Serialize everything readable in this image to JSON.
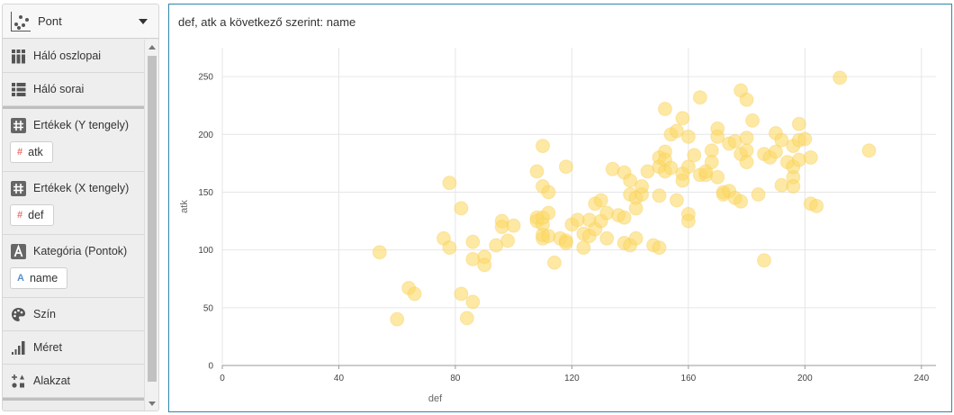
{
  "sidebar": {
    "chart_type": {
      "label": "Pont",
      "icon": "scatter-chart-icon"
    },
    "rows": [
      {
        "key": "grid-columns",
        "label": "Háló oszlopai",
        "icon": "grid-columns-icon"
      },
      {
        "key": "grid-rows",
        "label": "Háló sorai",
        "icon": "grid-rows-icon"
      },
      {
        "key": "values-y",
        "label": "Ertékek (Y tengely)",
        "icon": "hash-icon",
        "field": "atk",
        "field_icon": "#"
      },
      {
        "key": "values-x",
        "label": "Ertékek (X tengely)",
        "icon": "hash-icon",
        "field": "def",
        "field_icon": "#"
      },
      {
        "key": "category",
        "label": "Kategória (Pontok)",
        "icon": "text-a-icon",
        "field": "name",
        "field_icon": "A"
      },
      {
        "key": "color",
        "label": "Szín",
        "icon": "palette-icon"
      },
      {
        "key": "size",
        "label": "Méret",
        "icon": "size-bars-icon"
      },
      {
        "key": "shape",
        "label": "Alakzat",
        "icon": "shapes-icon"
      }
    ]
  },
  "colors": {
    "point": "#fcd968",
    "point_stroke": "#f5c842",
    "frame": "#2e86ab",
    "number_icon": "#e8736c",
    "text_icon": "#5b8fc9"
  },
  "chart_data": {
    "type": "scatter",
    "title": "def, atk a következő szerint: name",
    "xlabel": "def",
    "ylabel": "atk",
    "xlim": [
      0,
      245
    ],
    "ylim": [
      0,
      275
    ],
    "xticks": [
      0,
      40,
      80,
      120,
      160,
      200,
      240
    ],
    "yticks": [
      0,
      50,
      100,
      150,
      200,
      250
    ],
    "grid": true,
    "points": [
      [
        54,
        98
      ],
      [
        60,
        40
      ],
      [
        64,
        67
      ],
      [
        66,
        62
      ],
      [
        76,
        110
      ],
      [
        78,
        158
      ],
      [
        78,
        102
      ],
      [
        82,
        136
      ],
      [
        82,
        62
      ],
      [
        84,
        41
      ],
      [
        86,
        55
      ],
      [
        86,
        107
      ],
      [
        86,
        92
      ],
      [
        90,
        94
      ],
      [
        90,
        87
      ],
      [
        94,
        104
      ],
      [
        96,
        125
      ],
      [
        96,
        120
      ],
      [
        98,
        108
      ],
      [
        100,
        121
      ],
      [
        108,
        128
      ],
      [
        108,
        125
      ],
      [
        108,
        168
      ],
      [
        110,
        190
      ],
      [
        110,
        155
      ],
      [
        110,
        122
      ],
      [
        110,
        110
      ],
      [
        110,
        113
      ],
      [
        110,
        128
      ],
      [
        112,
        150
      ],
      [
        112,
        132
      ],
      [
        112,
        112
      ],
      [
        114,
        89
      ],
      [
        116,
        110
      ],
      [
        118,
        172
      ],
      [
        118,
        108
      ],
      [
        118,
        106
      ],
      [
        120,
        122
      ],
      [
        122,
        126
      ],
      [
        124,
        114
      ],
      [
        124,
        102
      ],
      [
        126,
        126
      ],
      [
        126,
        112
      ],
      [
        128,
        118
      ],
      [
        128,
        140
      ],
      [
        130,
        143
      ],
      [
        130,
        125
      ],
      [
        132,
        132
      ],
      [
        132,
        110
      ],
      [
        134,
        170
      ],
      [
        136,
        130
      ],
      [
        138,
        167
      ],
      [
        138,
        106
      ],
      [
        138,
        128
      ],
      [
        140,
        104
      ],
      [
        140,
        160
      ],
      [
        140,
        148
      ],
      [
        142,
        110
      ],
      [
        142,
        145
      ],
      [
        142,
        136
      ],
      [
        144,
        148
      ],
      [
        144,
        155
      ],
      [
        146,
        168
      ],
      [
        148,
        104
      ],
      [
        150,
        180
      ],
      [
        150,
        172
      ],
      [
        150,
        102
      ],
      [
        150,
        147
      ],
      [
        152,
        222
      ],
      [
        152,
        185
      ],
      [
        152,
        178
      ],
      [
        152,
        168
      ],
      [
        154,
        200
      ],
      [
        154,
        171
      ],
      [
        156,
        203
      ],
      [
        156,
        143
      ],
      [
        158,
        214
      ],
      [
        158,
        166
      ],
      [
        158,
        160
      ],
      [
        160,
        172
      ],
      [
        160,
        198
      ],
      [
        160,
        131
      ],
      [
        160,
        125
      ],
      [
        162,
        182
      ],
      [
        164,
        232
      ],
      [
        164,
        165
      ],
      [
        166,
        165
      ],
      [
        166,
        168
      ],
      [
        168,
        186
      ],
      [
        168,
        176
      ],
      [
        170,
        205
      ],
      [
        170,
        198
      ],
      [
        170,
        163
      ],
      [
        172,
        150
      ],
      [
        172,
        148
      ],
      [
        174,
        151
      ],
      [
        174,
        192
      ],
      [
        176,
        194
      ],
      [
        176,
        145
      ],
      [
        178,
        238
      ],
      [
        178,
        183
      ],
      [
        178,
        142
      ],
      [
        180,
        230
      ],
      [
        180,
        197
      ],
      [
        180,
        186
      ],
      [
        180,
        176
      ],
      [
        182,
        212
      ],
      [
        184,
        148
      ],
      [
        186,
        91
      ],
      [
        186,
        183
      ],
      [
        188,
        180
      ],
      [
        190,
        201
      ],
      [
        190,
        185
      ],
      [
        192,
        156
      ],
      [
        192,
        195
      ],
      [
        194,
        176
      ],
      [
        196,
        190
      ],
      [
        196,
        163
      ],
      [
        196,
        155
      ],
      [
        196,
        172
      ],
      [
        198,
        209
      ],
      [
        198,
        195
      ],
      [
        198,
        178
      ],
      [
        200,
        196
      ],
      [
        202,
        180
      ],
      [
        202,
        140
      ],
      [
        204,
        138
      ],
      [
        212,
        249
      ],
      [
        222,
        186
      ]
    ]
  }
}
